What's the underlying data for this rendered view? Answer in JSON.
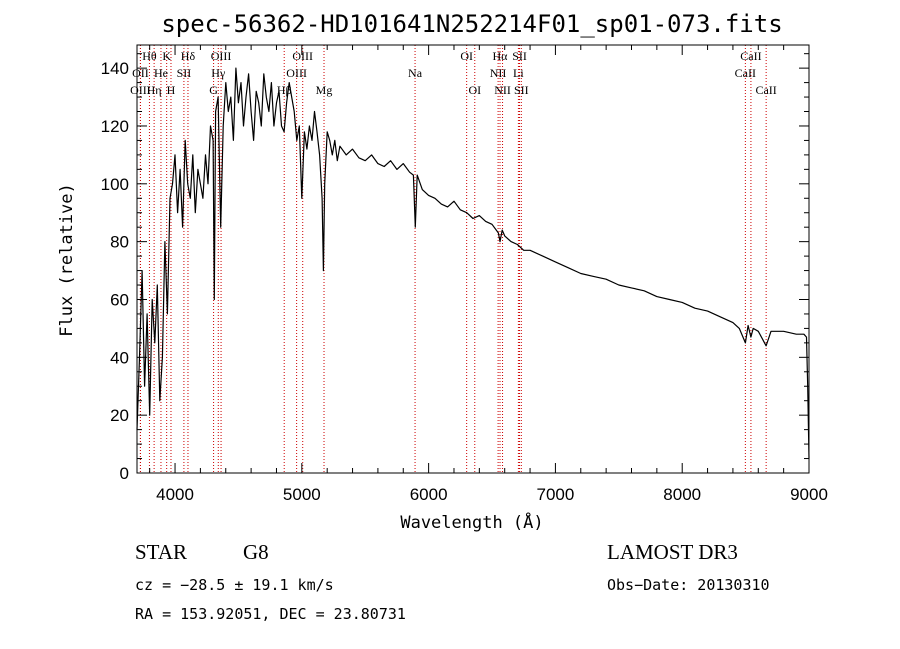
{
  "chart_data": {
    "type": "line",
    "title": "spec-56362-HD101641N252214F01_sp01-073.fits",
    "xlabel": "Wavelength (Å)",
    "ylabel": "Flux (relative)",
    "xlim": [
      3700,
      9000
    ],
    "ylim": [
      0,
      148
    ],
    "x_ticks": [
      4000,
      5000,
      6000,
      7000,
      8000,
      9000
    ],
    "y_ticks": [
      0,
      20,
      40,
      60,
      80,
      100,
      120,
      140
    ],
    "series": [
      {
        "name": "flux",
        "x": [
          3700,
          3720,
          3740,
          3760,
          3780,
          3800,
          3820,
          3840,
          3860,
          3880,
          3900,
          3920,
          3940,
          3960,
          3980,
          4000,
          4020,
          4040,
          4060,
          4080,
          4100,
          4120,
          4140,
          4160,
          4180,
          4200,
          4220,
          4240,
          4260,
          4280,
          4300,
          4310,
          4320,
          4340,
          4360,
          4380,
          4400,
          4420,
          4440,
          4460,
          4480,
          4500,
          4520,
          4540,
          4560,
          4580,
          4600,
          4620,
          4640,
          4660,
          4680,
          4700,
          4720,
          4740,
          4760,
          4780,
          4800,
          4820,
          4840,
          4860,
          4880,
          4900,
          4920,
          4940,
          4960,
          4980,
          5000,
          5020,
          5040,
          5060,
          5080,
          5100,
          5120,
          5140,
          5160,
          5170,
          5180,
          5200,
          5220,
          5240,
          5260,
          5280,
          5300,
          5350,
          5400,
          5450,
          5500,
          5550,
          5600,
          5650,
          5700,
          5750,
          5800,
          5850,
          5880,
          5895,
          5910,
          5950,
          6000,
          6050,
          6100,
          6150,
          6200,
          6250,
          6300,
          6350,
          6400,
          6450,
          6500,
          6550,
          6563,
          6580,
          6600,
          6650,
          6700,
          6750,
          6800,
          6900,
          7000,
          7100,
          7200,
          7300,
          7400,
          7500,
          7600,
          7700,
          7800,
          7900,
          8000,
          8100,
          8200,
          8300,
          8400,
          8450,
          8498,
          8520,
          8542,
          8560,
          8600,
          8662,
          8700,
          8800,
          8900,
          8960,
          8980,
          8990,
          9000
        ],
        "values": [
          15,
          40,
          70,
          30,
          55,
          20,
          60,
          45,
          65,
          25,
          40,
          80,
          55,
          95,
          100,
          110,
          90,
          105,
          85,
          115,
          100,
          95,
          110,
          90,
          105,
          100,
          95,
          110,
          100,
          120,
          115,
          60,
          125,
          130,
          85,
          120,
          135,
          125,
          130,
          115,
          140,
          128,
          135,
          120,
          130,
          138,
          125,
          115,
          132,
          128,
          120,
          138,
          130,
          125,
          135,
          120,
          128,
          132,
          120,
          118,
          128,
          135,
          130,
          125,
          115,
          120,
          95,
          118,
          112,
          120,
          115,
          125,
          118,
          110,
          95,
          70,
          100,
          118,
          115,
          110,
          115,
          108,
          113,
          110,
          112,
          109,
          108,
          110,
          107,
          106,
          108,
          105,
          107,
          104,
          103,
          85,
          103,
          98,
          96,
          95,
          93,
          92,
          94,
          91,
          90,
          88,
          89,
          87,
          86,
          83,
          80,
          84,
          82,
          80,
          79,
          77,
          77,
          75,
          73,
          71,
          69,
          68,
          67,
          65,
          64,
          63,
          61,
          60,
          59,
          57,
          56,
          54,
          52,
          50,
          45,
          51,
          47,
          50,
          49,
          44,
          49,
          49,
          48,
          48,
          47,
          30,
          5
        ]
      }
    ],
    "spectral_lines": [
      {
        "label": "Hθ",
        "x": 3798,
        "row": 1
      },
      {
        "label": "OII",
        "x": 3727,
        "row": 2
      },
      {
        "label": "OIII",
        "x": 3727,
        "row": 3
      },
      {
        "label": "He",
        "x": 3889,
        "row": 2
      },
      {
        "label": "Hη",
        "x": 3835,
        "row": 3
      },
      {
        "label": "K",
        "x": 3934,
        "row": 1
      },
      {
        "label": "H",
        "x": 3968,
        "row": 3
      },
      {
        "label": "SII",
        "x": 4070,
        "row": 2
      },
      {
        "label": "Hδ",
        "x": 4102,
        "row": 1
      },
      {
        "label": "G",
        "x": 4304,
        "row": 3
      },
      {
        "label": "Hγ",
        "x": 4341,
        "row": 2
      },
      {
        "label": "OIII",
        "x": 4363,
        "row": 1
      },
      {
        "label": "Hβ",
        "x": 4861,
        "row": 3
      },
      {
        "label": "OIII",
        "x": 4959,
        "row": 2
      },
      {
        "label": "OIII",
        "x": 5007,
        "row": 1
      },
      {
        "label": "Mg",
        "x": 5175,
        "row": 3
      },
      {
        "label": "Na",
        "x": 5893,
        "row": 2
      },
      {
        "label": "OI",
        "x": 6300,
        "row": 1
      },
      {
        "label": "OI",
        "x": 6364,
        "row": 3
      },
      {
        "label": "NII",
        "x": 6548,
        "row": 2
      },
      {
        "label": "Hα",
        "x": 6563,
        "row": 1
      },
      {
        "label": "NII",
        "x": 6583,
        "row": 3
      },
      {
        "label": "Li",
        "x": 6708,
        "row": 2
      },
      {
        "label": "SII",
        "x": 6717,
        "row": 1
      },
      {
        "label": "SII",
        "x": 6731,
        "row": 3
      },
      {
        "label": "CaII",
        "x": 8498,
        "row": 2
      },
      {
        "label": "CaII",
        "x": 8542,
        "row": 1
      },
      {
        "label": "CaII",
        "x": 8662,
        "row": 3
      }
    ]
  },
  "info": {
    "object_class": "STAR",
    "subclass": "G8",
    "survey": "LAMOST DR3",
    "cz": "cz = −28.5 ± 19.1 km/s",
    "obs_date": "Obs−Date: 20130310",
    "coords": "RA = 153.92051, DEC =  23.80731"
  },
  "colors": {
    "line_marker": "#cc0000",
    "spectrum": "#000000",
    "axes": "#000000"
  }
}
